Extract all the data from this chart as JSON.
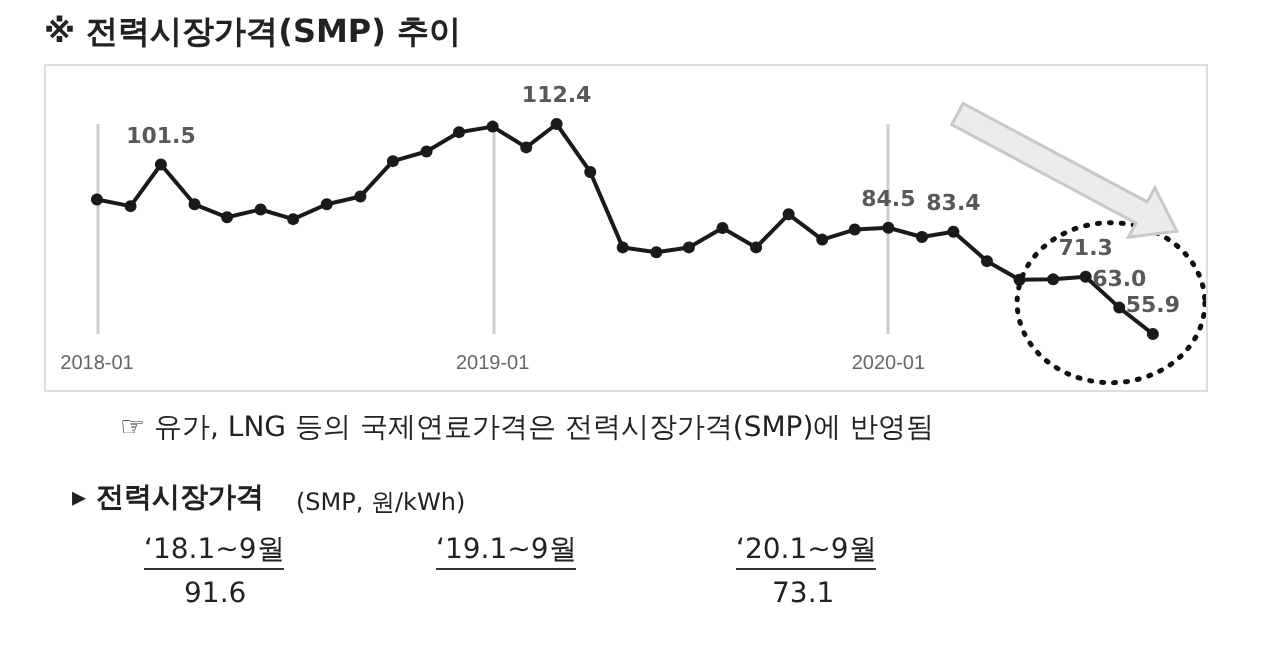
{
  "chart_data": {
    "type": "line",
    "title": "※ 전력시장가격(SMP) 추이",
    "x": [
      "2018-01",
      "2018-02",
      "2018-03",
      "2018-04",
      "2018-05",
      "2018-06",
      "2018-07",
      "2018-08",
      "2018-09",
      "2018-10",
      "2018-11",
      "2018-12",
      "2019-01",
      "2019-02",
      "2019-03",
      "2019-04",
      "2019-05",
      "2019-06",
      "2019-07",
      "2019-08",
      "2019-09",
      "2019-10",
      "2019-11",
      "2019-12",
      "2020-01",
      "2020-02",
      "2020-03",
      "2020-04",
      "2020-05",
      "2020-06",
      "2020-07",
      "2020-08",
      "2020-09"
    ],
    "series": [
      {
        "color": "#1a1a1a",
        "values": [
          92.1,
          90.3,
          101.5,
          90.8,
          87.3,
          89.4,
          86.8,
          90.8,
          92.9,
          102.4,
          105.0,
          110.2,
          111.7,
          106.1,
          112.4,
          99.5,
          79.2,
          77.9,
          79.2,
          84.4,
          79.2,
          88.1,
          81.3,
          84.0,
          84.5,
          82.0,
          83.4,
          75.5,
          70.5,
          70.6,
          71.3,
          63.0,
          55.9
        ],
        "value_labels": [
          null,
          null,
          "101.5",
          null,
          null,
          null,
          null,
          null,
          null,
          null,
          null,
          null,
          null,
          null,
          "112.4",
          null,
          null,
          null,
          null,
          null,
          null,
          null,
          null,
          null,
          "84.5",
          null,
          "83.4",
          null,
          null,
          null,
          "71.3",
          "63.0",
          "55.9"
        ]
      }
    ],
    "xlim": [
      "2017-11-15",
      "2020-10-20"
    ],
    "xticks": [
      "2018-01",
      "2019-01",
      "2020-01"
    ],
    "grid": "x",
    "marker": "circle",
    "line_style": "solid",
    "tick_labels": "x",
    "annotations": [
      "☞ 유가, LNG 등의 국제연료가격은 전력시장가격(SMP)에 반영됨",
      "▸ 전력시장가격",
      "(SMP, 원/kWh)",
      "‘18.1~9월",
      "91.6",
      "‘19.1~9월",
      "‘20.1~9월",
      "73.1"
    ]
  }
}
